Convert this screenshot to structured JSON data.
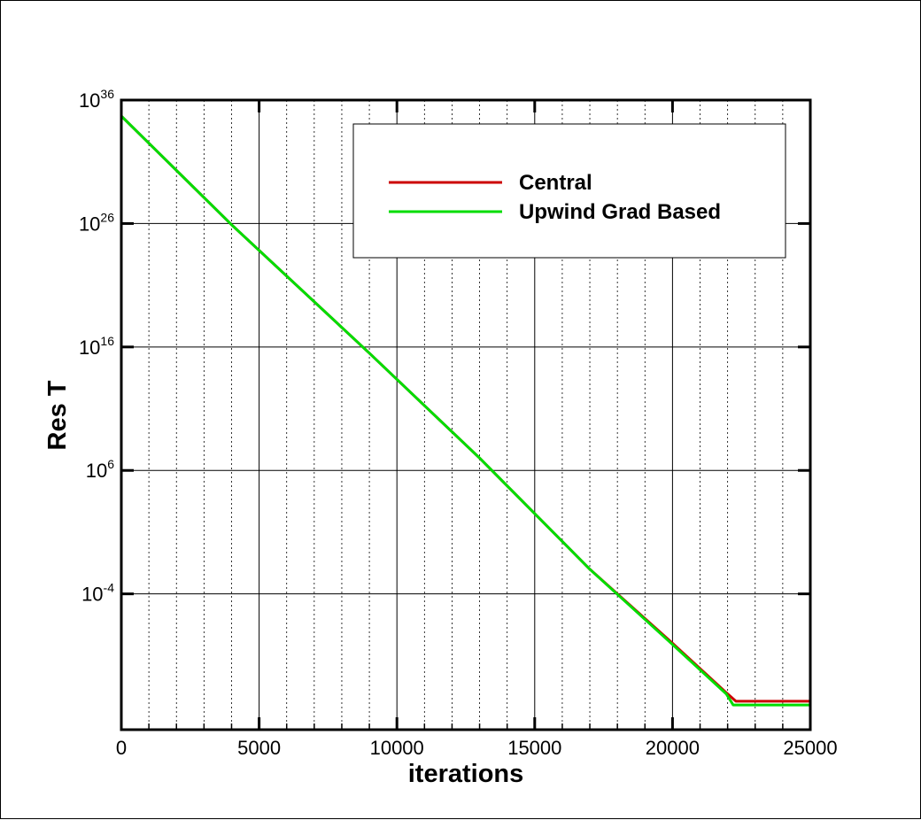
{
  "chart_data": {
    "type": "line",
    "xlabel": "iterations",
    "ylabel": "Res T",
    "xlim": [
      0,
      25000
    ],
    "ylim_log10": [
      -15,
      36
    ],
    "yscale": "log",
    "grid": true,
    "legend_placement": "top-right",
    "x_ticks": [
      {
        "value": 0,
        "label": "0"
      },
      {
        "value": 5000,
        "label": "5000"
      },
      {
        "value": 10000,
        "label": "10000"
      },
      {
        "value": 15000,
        "label": "15000"
      },
      {
        "value": 20000,
        "label": "20000"
      },
      {
        "value": 25000,
        "label": "25000"
      }
    ],
    "y_ticks": [
      {
        "exp": 36,
        "base": "10",
        "sup": "36"
      },
      {
        "exp": 26,
        "base": "10",
        "sup": "26"
      },
      {
        "exp": 16,
        "base": "10",
        "sup": "16"
      },
      {
        "exp": 6,
        "base": "10",
        "sup": "6"
      },
      {
        "exp": -4,
        "base": "10",
        "sup": "-4"
      }
    ],
    "series": [
      {
        "name": "Central",
        "color": "#cc0000",
        "x": [
          0,
          4000,
          9000,
          13000,
          17000,
          20000,
          21950,
          22300,
          25000
        ],
        "log10_y": [
          34.7,
          25.9,
          15.5,
          7.0,
          -2.0,
          -8.0,
          -12.0,
          -12.7,
          -12.7
        ]
      },
      {
        "name": "Upwind Grad Based",
        "color": "#00dd00",
        "x": [
          0,
          4000,
          9000,
          13000,
          17000,
          20000,
          21950,
          22200,
          25000
        ],
        "log10_y": [
          34.7,
          25.9,
          15.5,
          7.0,
          -2.0,
          -8.1,
          -12.1,
          -13.0,
          -13.0
        ]
      }
    ]
  }
}
